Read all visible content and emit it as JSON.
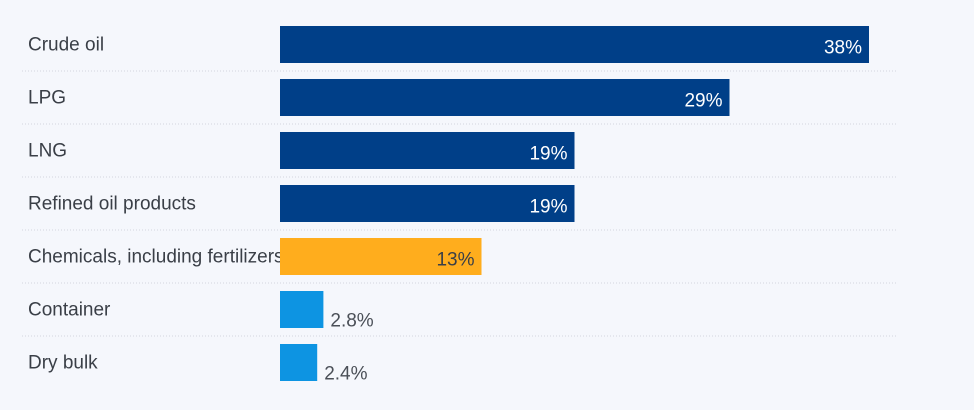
{
  "chart_data": {
    "type": "bar",
    "orientation": "horizontal",
    "categories": [
      "Crude oil",
      "LPG",
      "LNG",
      "Refined oil products",
      "Chemicals, including fertilizers",
      "Container",
      "Dry bulk"
    ],
    "values": [
      38,
      29,
      19,
      19,
      13,
      2.8,
      2.4
    ],
    "value_labels": [
      "38%",
      "29%",
      "19%",
      "19%",
      "13%",
      "2.8%",
      "2.4%"
    ],
    "bar_colors": [
      "#003f88",
      "#003f88",
      "#003f88",
      "#003f88",
      "#ffad1d",
      "#0d94e2",
      "#0d94e2"
    ],
    "title": "",
    "xlabel": "",
    "ylabel": "",
    "xlim": [
      0,
      38
    ],
    "grid": false,
    "legend": "none"
  },
  "colors": {
    "background": "#f5f7fc",
    "separator": "#d2d6de",
    "category_text": "#3a3f47",
    "label_inside": "#ffffff",
    "label_outside": "#4a4f57",
    "label_on_amber": "#3a3f47"
  }
}
